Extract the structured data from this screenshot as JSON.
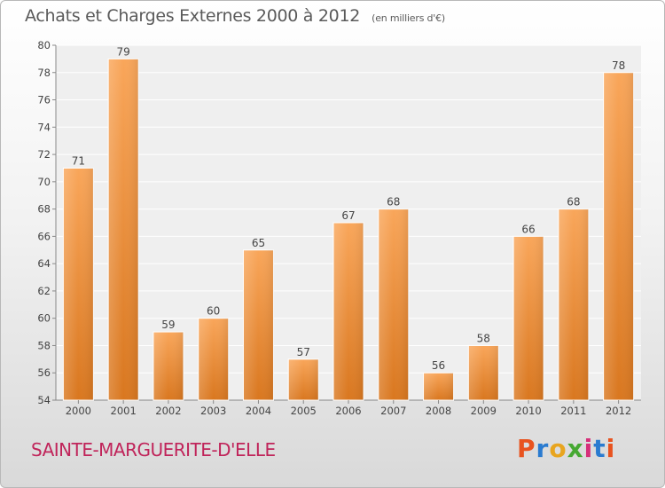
{
  "header": {
    "title": "Achats et Charges Externes 2000 à 2012",
    "unit": "(en milliers d'€)"
  },
  "footer": {
    "commune": "SAINTE-MARGUERITE-D'ELLE",
    "brand_letters": [
      "P",
      "r",
      "o",
      "x",
      "i",
      "t",
      "i"
    ]
  },
  "colors": {
    "bar_light": "#f9a65a",
    "bar_dark": "#d9771f",
    "commune": "#c0245a"
  },
  "chart_data": {
    "type": "bar",
    "title": "Achats et Charges Externes 2000 à 2012",
    "subtitle": "(en milliers d'€)",
    "categories": [
      "2000",
      "2001",
      "2002",
      "2003",
      "2004",
      "2005",
      "2006",
      "2007",
      "2008",
      "2009",
      "2010",
      "2011",
      "2012"
    ],
    "values": [
      71,
      79,
      59,
      60,
      65,
      57,
      67,
      68,
      56,
      58,
      66,
      68,
      78
    ],
    "ylim": [
      54,
      80
    ],
    "yticks": [
      54,
      56,
      58,
      60,
      62,
      64,
      66,
      68,
      70,
      72,
      74,
      76,
      78,
      80
    ],
    "grid": true,
    "data_labels": true
  }
}
